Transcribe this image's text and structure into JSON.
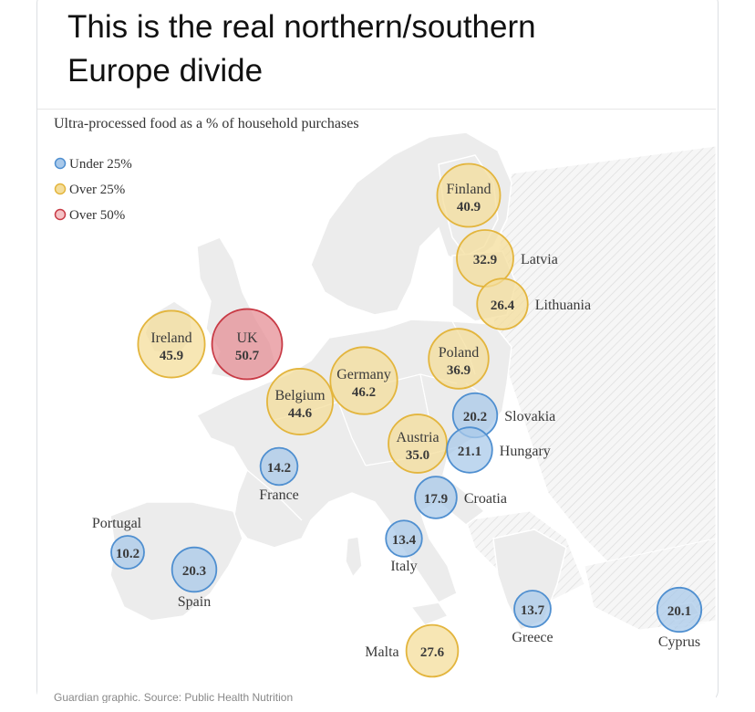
{
  "tweet": {
    "line1": "This is the real northern/southern",
    "line2": "Europe divide"
  },
  "graphic": {
    "title": "Ultra-processed food as a % of household purchases",
    "source": "Guardian graphic. Source: Public Health Nutrition"
  },
  "legend": [
    {
      "label": "Under 25%",
      "color": "#7fb0dd"
    },
    {
      "label": "Over 25%",
      "color": "#f1d37f"
    },
    {
      "label": "Over 50%",
      "color": "#d9646c"
    }
  ],
  "colors": {
    "under25_fill": "#a9c9ea",
    "under25_stroke": "#4f8fd0",
    "over25_fill": "#f4dd9b",
    "over25_stroke": "#e3b53d",
    "over50_fill": "#e58f95",
    "over50_stroke": "#c83a45",
    "land": "#ededed",
    "coast": "#ffffff",
    "label": "#444444"
  },
  "countries": [
    {
      "name": "Finland",
      "value": "40.9",
      "pct": 40.9
    },
    {
      "name": "Latvia",
      "value": "32.9",
      "pct": 32.9
    },
    {
      "name": "Lithuania",
      "value": "26.4",
      "pct": 26.4
    },
    {
      "name": "Ireland",
      "value": "45.9",
      "pct": 45.9
    },
    {
      "name": "UK",
      "value": "50.7",
      "pct": 50.7
    },
    {
      "name": "Germany",
      "value": "46.2",
      "pct": 46.2
    },
    {
      "name": "Belgium",
      "value": "44.6",
      "pct": 44.6
    },
    {
      "name": "Poland",
      "value": "36.9",
      "pct": 36.9
    },
    {
      "name": "Slovakia",
      "value": "20.2",
      "pct": 20.2
    },
    {
      "name": "Austria",
      "value": "35.0",
      "pct": 35.0
    },
    {
      "name": "Hungary",
      "value": "21.1",
      "pct": 21.1
    },
    {
      "name": "France",
      "value": "14.2",
      "pct": 14.2
    },
    {
      "name": "Croatia",
      "value": "17.9",
      "pct": 17.9
    },
    {
      "name": "Portugal",
      "value": "10.2",
      "pct": 10.2
    },
    {
      "name": "Italy",
      "value": "13.4",
      "pct": 13.4
    },
    {
      "name": "Spain",
      "value": "20.3",
      "pct": 20.3
    },
    {
      "name": "Greece",
      "value": "13.7",
      "pct": 13.7
    },
    {
      "name": "Cyprus",
      "value": "20.1",
      "pct": 20.1
    },
    {
      "name": "Malta",
      "value": "27.6",
      "pct": 27.6
    }
  ]
}
